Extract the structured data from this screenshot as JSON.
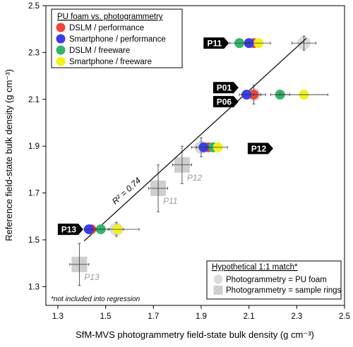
{
  "chart_data": {
    "type": "scatter",
    "xlabel": "SfM-MVS photogrammetry field-state bulk density (g cm⁻³)",
    "ylabel": "Reference field-state bulk density (g cm⁻³)",
    "xlim": [
      1.25,
      2.5
    ],
    "ylim": [
      1.22,
      2.5
    ],
    "xticks": [
      "1.3",
      "1.5",
      "1.7",
      "1.9",
      "2.1",
      "2.3",
      "2.5"
    ],
    "yticks": [
      "1.3",
      "1.5",
      "1.7",
      "1.9",
      "2.1",
      "2.3",
      "2.5"
    ],
    "grid": false,
    "legend": {
      "title": "PU foam vs. photogrammetry",
      "position": "top-left",
      "entries": [
        "DSLM / performance",
        "Smartphone / performance",
        "DSLM / freeware",
        "Smartphone / freeware"
      ]
    },
    "series": [
      {
        "name": "DSLM / performance",
        "color": "#f0453a",
        "points": [
          {
            "x": 2.12,
            "y": 2.34,
            "xerr": 0.03
          },
          {
            "x": 2.12,
            "y": 2.12,
            "xerr": 0.03
          },
          {
            "x": 1.93,
            "y": 1.895,
            "xerr": 0.03
          },
          {
            "x": 1.44,
            "y": 1.545,
            "xerr": 0.02
          }
        ]
      },
      {
        "name": "Smartphone / performance",
        "color": "#3d3de8",
        "points": [
          {
            "x": 2.1,
            "y": 2.34,
            "xerr": 0.03
          },
          {
            "x": 2.09,
            "y": 2.12,
            "xerr": 0.03
          },
          {
            "x": 1.91,
            "y": 1.895,
            "xerr": 0.03
          },
          {
            "x": 1.43,
            "y": 1.545,
            "xerr": 0.02
          }
        ]
      },
      {
        "name": "DSLM / freeware",
        "color": "#33b56b",
        "points": [
          {
            "x": 2.06,
            "y": 2.34,
            "xerr": 0.04
          },
          {
            "x": 2.23,
            "y": 2.12,
            "xerr": 0.04
          },
          {
            "x": 1.95,
            "y": 1.895,
            "xerr": 0.03
          },
          {
            "x": 1.48,
            "y": 1.545,
            "xerr": 0.03
          }
        ]
      },
      {
        "name": "Smartphone / freeware",
        "color": "#f2f21c",
        "points": [
          {
            "x": 2.14,
            "y": 2.34,
            "xerr": 0.05
          },
          {
            "x": 2.33,
            "y": 2.12,
            "xerr": 0.1
          },
          {
            "x": 1.97,
            "y": 1.895,
            "xerr": 0.04
          },
          {
            "x": 1.55,
            "y": 1.545,
            "xerr": 0.09
          }
        ]
      }
    ],
    "reference_pu_foam": [
      {
        "x": 2.33,
        "y": 2.34,
        "xerr": 0.05,
        "yerr": 0.03
      },
      {
        "x": 2.12,
        "y": 2.12,
        "xerr": 0.05,
        "yerr": 0.04
      },
      {
        "x": 1.9,
        "y": 1.895,
        "xerr": 0.04,
        "yerr": 0.04
      },
      {
        "x": 1.545,
        "y": 1.545,
        "xerr": 0.03,
        "yerr": 0.03
      }
    ],
    "reference_sample_rings": [
      {
        "x": 1.39,
        "y": 1.395,
        "xerr": 0.04,
        "yerr": 0.09,
        "label": "P13"
      },
      {
        "x": 1.72,
        "y": 1.72,
        "xerr": 0.04,
        "yerr": 0.1,
        "label": "P11"
      },
      {
        "x": 1.82,
        "y": 1.82,
        "xerr": 0.04,
        "yerr": 0.08,
        "label": "P12"
      }
    ],
    "regression": {
      "x": [
        1.41,
        2.34
      ],
      "y": [
        1.495,
        2.36
      ],
      "label": "R² = 0.74"
    },
    "point_labels": [
      {
        "text": "P11",
        "x": 1.91,
        "y": 2.34
      },
      {
        "text": "P01",
        "x": 1.95,
        "y": 2.15
      },
      {
        "text": "P06",
        "x": 1.95,
        "y": 2.09
      },
      {
        "text": "P12",
        "x": 2.095,
        "y": 1.89
      },
      {
        "text": "P13",
        "x": 1.3,
        "y": 1.545
      }
    ],
    "legend2": {
      "title": "Hypothetical 1:1 match*",
      "position": "bottom-right",
      "entries": [
        "Photogrammetry = PU foam",
        "Photogrammetry = sample rings"
      ]
    },
    "footnote": "*not included into regression"
  }
}
